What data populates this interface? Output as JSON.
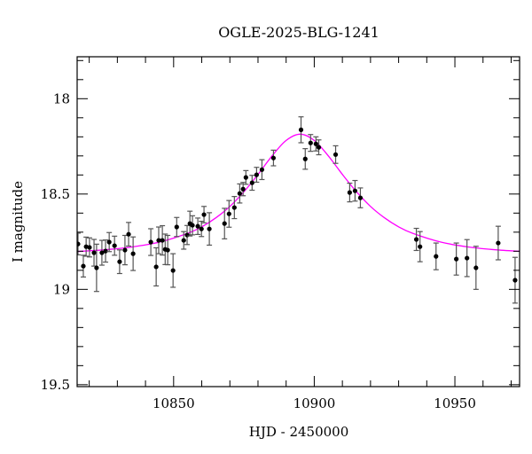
{
  "chart_data": {
    "type": "scatter",
    "title": "OGLE-2025-BLG-1241",
    "xlabel": "HJD - 2450000",
    "ylabel": "I magnitude",
    "xlim": [
      10815.7,
      10973
    ],
    "ylim": [
      17.78,
      19.51
    ],
    "y_inverted": true,
    "grid": false,
    "x_major_ticks": [
      10850,
      10900,
      10950
    ],
    "x_tick_labels": [
      "10850",
      "10900",
      "10950"
    ],
    "x_minor_step": 10,
    "y_major_ticks": [
      18,
      18.5,
      19,
      19.5
    ],
    "y_tick_labels": [
      "18",
      "18.5",
      "19",
      "19.5"
    ],
    "y_minor_step": 0.1,
    "colors": {
      "points": "#000000",
      "errorbars": "#555555",
      "model": "#ff00ff",
      "axes": "#000000"
    },
    "series": [
      {
        "kind": "points-with-errorbars",
        "x": [
          10816.0,
          10817.9,
          10818.9,
          10820.1,
          10821.7,
          10822.6,
          10824.5,
          10825.8,
          10827.1,
          10829.0,
          10830.8,
          10832.7,
          10834.0,
          10835.6,
          10841.9,
          10843.8,
          10844.7,
          10846.0,
          10847.0,
          10847.9,
          10849.8,
          10851.1,
          10853.6,
          10854.8,
          10855.8,
          10856.7,
          10858.6,
          10859.9,
          10860.8,
          10862.7,
          10868.1,
          10869.7,
          10871.6,
          10873.5,
          10874.7,
          10875.7,
          10877.9,
          10879.5,
          10881.4,
          10885.5,
          10895.3,
          10896.8,
          10898.7,
          10900.6,
          10901.6,
          10907.6,
          10912.6,
          10914.5,
          10916.4,
          10936.3,
          10937.6,
          10943.3,
          10950.5,
          10954.3,
          10957.5,
          10965.4,
          10971.4
        ],
        "y": [
          18.762,
          18.878,
          18.776,
          18.78,
          18.808,
          18.887,
          18.808,
          18.799,
          18.752,
          18.771,
          18.855,
          18.794,
          18.711,
          18.813,
          18.752,
          18.882,
          18.743,
          18.743,
          18.79,
          18.794,
          18.901,
          18.673,
          18.743,
          18.715,
          18.655,
          18.664,
          18.669,
          18.683,
          18.608,
          18.683,
          18.655,
          18.604,
          18.571,
          18.497,
          18.474,
          18.413,
          18.441,
          18.399,
          18.372,
          18.311,
          18.163,
          18.316,
          18.232,
          18.237,
          18.255,
          18.293,
          18.492,
          18.483,
          18.52,
          18.738,
          18.776,
          18.827,
          18.841,
          18.836,
          18.887,
          18.757,
          18.952
        ],
        "yerr": [
          0.057,
          0.057,
          0.05,
          0.05,
          0.07,
          0.124,
          0.065,
          0.058,
          0.05,
          0.05,
          0.062,
          0.077,
          0.062,
          0.088,
          0.07,
          0.1,
          0.07,
          0.077,
          0.08,
          0.077,
          0.088,
          0.05,
          0.046,
          0.05,
          0.065,
          0.05,
          0.043,
          0.04,
          0.043,
          0.085,
          0.08,
          0.07,
          0.058,
          0.05,
          0.035,
          0.036,
          0.039,
          0.039,
          0.052,
          0.041,
          0.068,
          0.054,
          0.044,
          0.037,
          0.039,
          0.046,
          0.049,
          0.054,
          0.052,
          0.058,
          0.079,
          0.07,
          0.084,
          0.097,
          0.113,
          0.088,
          0.12
        ]
      },
      {
        "kind": "model-line",
        "x": [
          10815,
          10825,
          10835,
          10845,
          10855,
          10860,
          10865,
          10870,
          10875,
          10880,
          10885,
          10890,
          10895,
          10900,
          10905,
          10910,
          10915,
          10920,
          10925,
          10930,
          10935,
          10945,
          10955,
          10965,
          10975
        ],
        "y": [
          18.802,
          18.793,
          18.778,
          18.752,
          18.706,
          18.672,
          18.625,
          18.565,
          18.488,
          18.397,
          18.3,
          18.219,
          18.186,
          18.219,
          18.3,
          18.397,
          18.488,
          18.565,
          18.625,
          18.672,
          18.706,
          18.752,
          18.778,
          18.793,
          18.802
        ]
      }
    ]
  }
}
